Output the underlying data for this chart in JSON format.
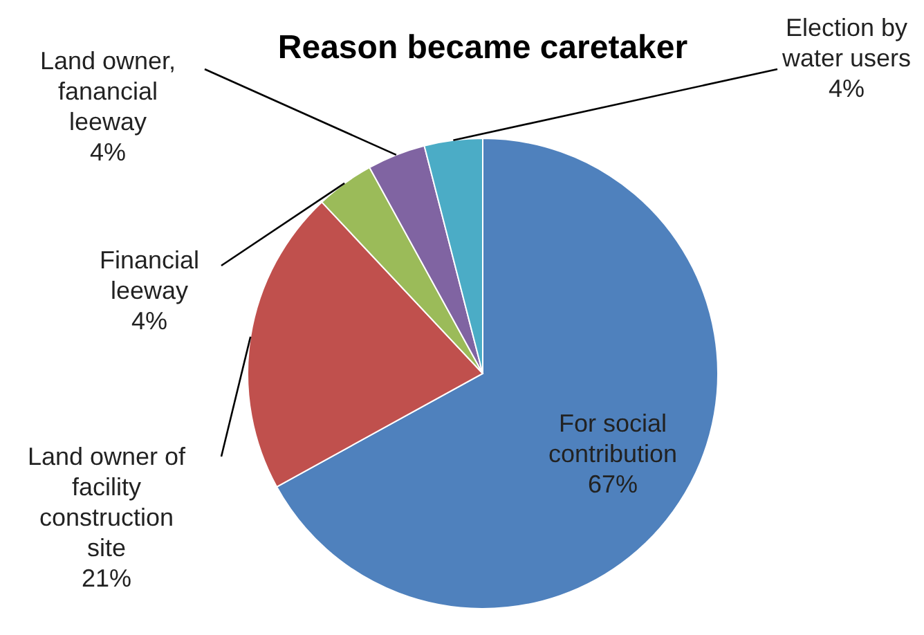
{
  "chart_data": {
    "type": "pie",
    "title": "Reason became caretaker",
    "categories": [
      "For social contribution",
      "Land owner of facility construction site",
      "Financial leeway",
      "Land owner, fanancial leeway",
      "Election by water users"
    ],
    "values": [
      67,
      21,
      4,
      4,
      4
    ],
    "value_labels": [
      "67%",
      "21%",
      "4%",
      "4%",
      "4%"
    ],
    "colors": [
      "#4f81bd",
      "#c0504d",
      "#9bbb59",
      "#8064a2",
      "#4bacc6"
    ],
    "legend": false
  }
}
